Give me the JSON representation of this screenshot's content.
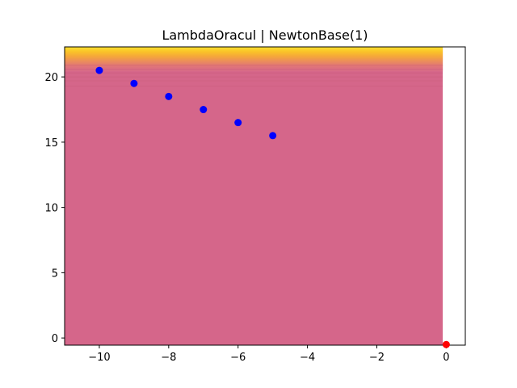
{
  "chart_data": {
    "type": "scatter",
    "title": "LambdaOracul | NewtonBase(1)",
    "xlabel": "",
    "ylabel": "",
    "xlim": [
      -11,
      0.55
    ],
    "ylim": [
      -0.55,
      22.3
    ],
    "xticks": [
      -10,
      -8,
      -6,
      -4,
      -2,
      0
    ],
    "yticks": [
      0,
      5,
      10,
      15,
      20
    ],
    "xtick_labels": [
      "−10",
      "−8",
      "−6",
      "−4",
      "−2",
      "0"
    ],
    "ytick_labels": [
      "0",
      "5",
      "10",
      "15",
      "20"
    ],
    "grid": false,
    "background": {
      "kind": "filled-contour",
      "x_range": [
        -11,
        -0.1
      ],
      "base_color": "#d5668a",
      "band_colors": [
        "#d6698a",
        "#e0737a",
        "#ea8a5e",
        "#f4a53c",
        "#fac228",
        "#fde030"
      ]
    },
    "series": [
      {
        "color": "#0000ff",
        "marker": "circle",
        "x": [
          -10,
          -9,
          -8,
          -7,
          -6,
          -5
        ],
        "y": [
          20.5,
          19.5,
          18.5,
          17.5,
          16.5,
          15.5
        ]
      },
      {
        "color": "#ff0000",
        "marker": "circle",
        "x": [
          0
        ],
        "y": [
          -0.5
        ]
      }
    ]
  }
}
